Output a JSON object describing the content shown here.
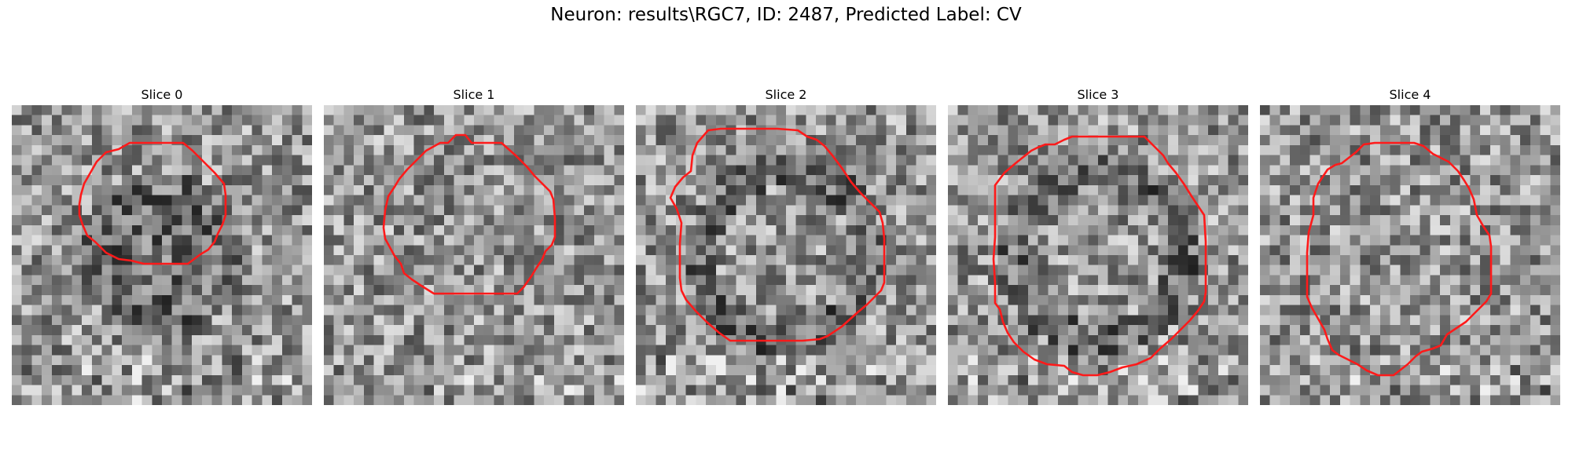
{
  "figure_title": "Neuron: results\\RGC7, ID: 2487, Predicted Label: CV",
  "colors": {
    "contour": "#ff1a1a",
    "background": "#ffffff"
  },
  "panels": [
    {
      "title": "Slice 0",
      "seed": 11,
      "blob": "dark"
    },
    {
      "title": "Slice 1",
      "seed": 23,
      "blob": "noise"
    },
    {
      "title": "Slice 2",
      "seed": 37,
      "blob": "dark-rim"
    },
    {
      "title": "Slice 3",
      "seed": 41,
      "blob": "dark-rim"
    },
    {
      "title": "Slice 4",
      "seed": 53,
      "blob": "noise"
    }
  ]
}
